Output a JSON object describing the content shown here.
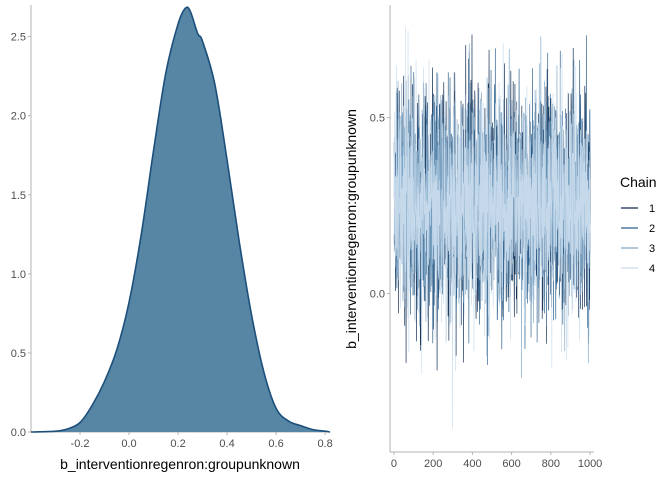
{
  "chart_data": [
    {
      "type": "area",
      "title": "",
      "xlabel": "b_interventionregenron:groupunknown",
      "ylabel": "",
      "xlim": [
        -0.4,
        0.82
      ],
      "ylim": [
        0,
        2.7
      ],
      "xticks": [
        -0.2,
        0.0,
        0.2,
        0.4,
        0.6,
        0.8
      ],
      "xtick_labels": [
        "-0.2",
        "0.0",
        "0.2",
        "0.4",
        "0.6",
        "0.8"
      ],
      "yticks": [
        0.0,
        0.5,
        1.0,
        1.5,
        2.0,
        2.5
      ],
      "ytick_labels": [
        "0.0",
        "0.5",
        "1.0",
        "1.5",
        "2.0",
        "2.5"
      ],
      "fill_color": "#5686a3",
      "line_color": "#1d4f7c",
      "x": [
        -0.4,
        -0.3,
        -0.25,
        -0.2,
        -0.15,
        -0.1,
        -0.05,
        0.0,
        0.05,
        0.1,
        0.15,
        0.2,
        0.23,
        0.25,
        0.28,
        0.3,
        0.35,
        0.4,
        0.45,
        0.5,
        0.55,
        0.6,
        0.65,
        0.7,
        0.75,
        0.8,
        0.82
      ],
      "density": [
        0.0,
        0.005,
        0.02,
        0.06,
        0.17,
        0.32,
        0.52,
        0.82,
        1.25,
        1.78,
        2.27,
        2.58,
        2.68,
        2.66,
        2.52,
        2.47,
        2.2,
        1.72,
        1.2,
        0.74,
        0.38,
        0.15,
        0.07,
        0.04,
        0.015,
        0.005,
        0.0
      ]
    },
    {
      "type": "line",
      "title": "",
      "xlabel": "",
      "ylabel": "b_interventionregenron:groupunknown",
      "xlim": [
        -20,
        1020
      ],
      "ylim": [
        -0.45,
        0.82
      ],
      "xticks": [
        0,
        200,
        400,
        600,
        800,
        1000
      ],
      "xtick_labels": [
        "0",
        "200",
        "400",
        "600",
        "800",
        "1000"
      ],
      "yticks": [
        0.0,
        0.5
      ],
      "ytick_labels": [
        "0.0",
        "0.5"
      ],
      "iterations": 1000,
      "series_mean": 0.26,
      "series_sd": 0.155,
      "series": [
        {
          "name": "1",
          "color": "#0d2a4f"
        },
        {
          "name": "2",
          "color": "#2e5f8a"
        },
        {
          "name": "3",
          "color": "#7fa6c6"
        },
        {
          "name": "4",
          "color": "#c9dced"
        }
      ],
      "legend": {
        "title": "Chain",
        "labels": [
          "1",
          "2",
          "3",
          "4"
        ],
        "placement": "right"
      }
    }
  ]
}
